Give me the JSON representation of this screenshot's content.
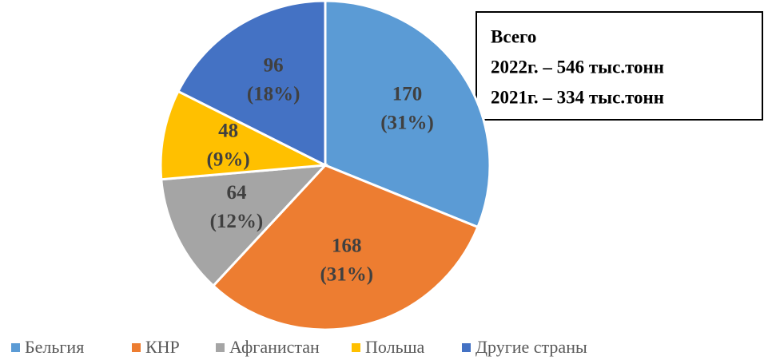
{
  "chart_data": {
    "type": "pie",
    "categories": [
      "Бельгия",
      "КНР",
      "Афганистан",
      "Польша",
      "Другие страны"
    ],
    "values": [
      170,
      168,
      64,
      48,
      96
    ],
    "value_labels": [
      [
        "170",
        "(31%)"
      ],
      [
        "168",
        "(31%)"
      ],
      [
        "64",
        "(12%)"
      ],
      [
        "48",
        "(9%)"
      ],
      [
        "96",
        "(18%)"
      ]
    ],
    "colors": [
      "#5b9bd5",
      "#ed7d31",
      "#a5a5a5",
      "#ffc000",
      "#4472c4"
    ],
    "annotation": [
      "Всего",
      "2022г. – 546 тыс.тонн",
      "2021г. – 334 тыс.тонн"
    ],
    "legend": "bottom"
  }
}
